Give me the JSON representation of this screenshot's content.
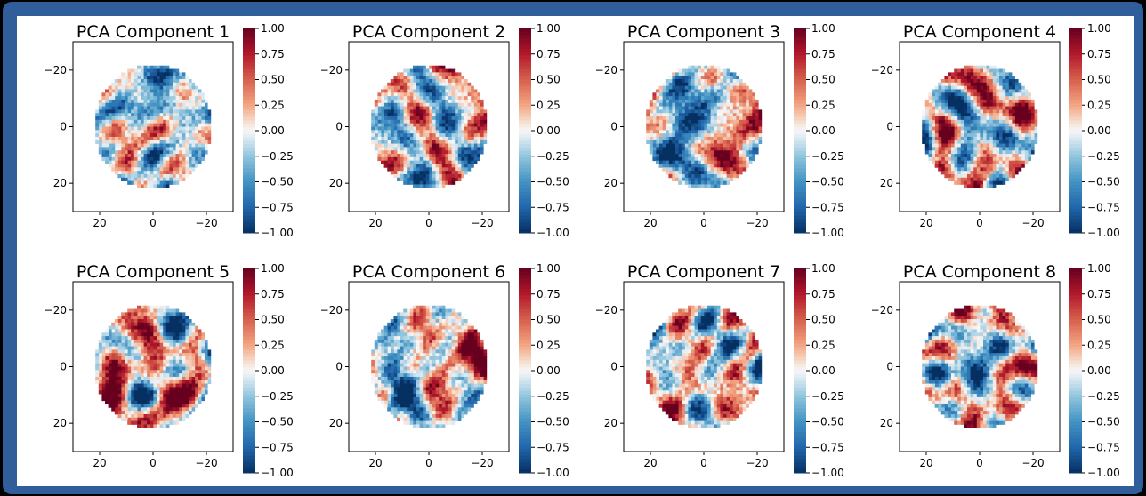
{
  "chart_data": {
    "type": "heatmap",
    "colormap": "RdBu_r (dark blue → white → dark red)",
    "colors": {
      "low": "#053061",
      "mid": "#f7f7f7",
      "high": "#67001f",
      "frame": "#2f5e9a"
    },
    "layout": "2 rows × 4 columns",
    "shape": "circular pixel map on a 50×50 grid",
    "xlim": [
      30,
      -30
    ],
    "ylim": [
      30,
      -30
    ],
    "xticks": [
      "20",
      "0",
      "−20"
    ],
    "yticks": [
      "−20",
      "0",
      "20"
    ],
    "colorbar": {
      "range": [
        -1.0,
        1.0
      ],
      "tick_labels": [
        "1.00",
        "0.75",
        "0.50",
        "0.25",
        "0.00",
        "−0.25",
        "−0.50",
        "−0.75",
        "−1.00"
      ]
    },
    "components": [
      {
        "title": "PCA Component 1"
      },
      {
        "title": "PCA Component 2"
      },
      {
        "title": "PCA Component 3"
      },
      {
        "title": "PCA Component 4"
      },
      {
        "title": "PCA Component 5"
      },
      {
        "title": "PCA Component 6"
      },
      {
        "title": "PCA Component 7"
      },
      {
        "title": "PCA Component 8"
      }
    ]
  }
}
